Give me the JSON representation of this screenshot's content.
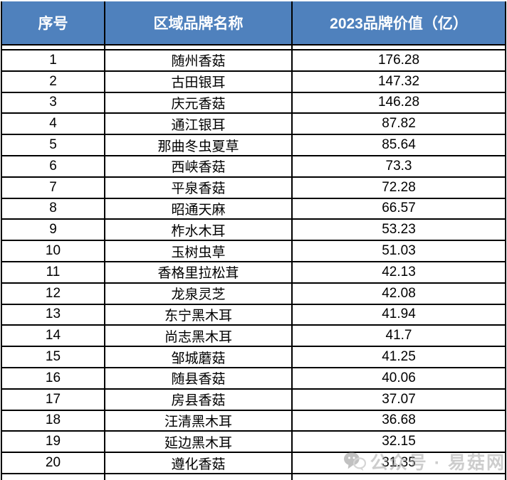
{
  "chart_data": {
    "type": "table",
    "columns": [
      "序号",
      "区域品牌名称",
      "2023品牌价值（亿）"
    ],
    "rows": [
      [
        1,
        "随州香菇",
        176.28
      ],
      [
        2,
        "古田银耳",
        147.32
      ],
      [
        3,
        "庆元香菇",
        146.28
      ],
      [
        4,
        "通江银耳",
        87.82
      ],
      [
        5,
        "那曲冬虫夏草",
        85.64
      ],
      [
        6,
        "西峡香菇",
        73.3
      ],
      [
        7,
        "平泉香菇",
        72.28
      ],
      [
        8,
        "昭通天麻",
        66.57
      ],
      [
        9,
        "柞水木耳",
        53.23
      ],
      [
        10,
        "玉树虫草",
        51.03
      ],
      [
        11,
        "香格里拉松茸",
        42.13
      ],
      [
        12,
        "龙泉灵芝",
        42.08
      ],
      [
        13,
        "东宁黑木耳",
        41.94
      ],
      [
        14,
        "尚志黑木耳",
        41.7
      ],
      [
        15,
        "邹城蘑菇",
        41.25
      ],
      [
        16,
        "随县香菇",
        40.06
      ],
      [
        17,
        "房县香菇",
        37.07
      ],
      [
        18,
        "汪清黑木耳",
        36.68
      ],
      [
        19,
        "延边黑木耳",
        32.15
      ],
      [
        20,
        "遵化香菇",
        31.35
      ]
    ]
  },
  "watermark": {
    "icon": "wechat-bubbles-icon",
    "text": "公众号 · 易菇网"
  },
  "colors": {
    "header_bg": "#4f81bd",
    "header_text": "#ffffff",
    "grid_border": "#000000",
    "body_text": "#000000",
    "watermark_gray": "#a6a6a6"
  }
}
